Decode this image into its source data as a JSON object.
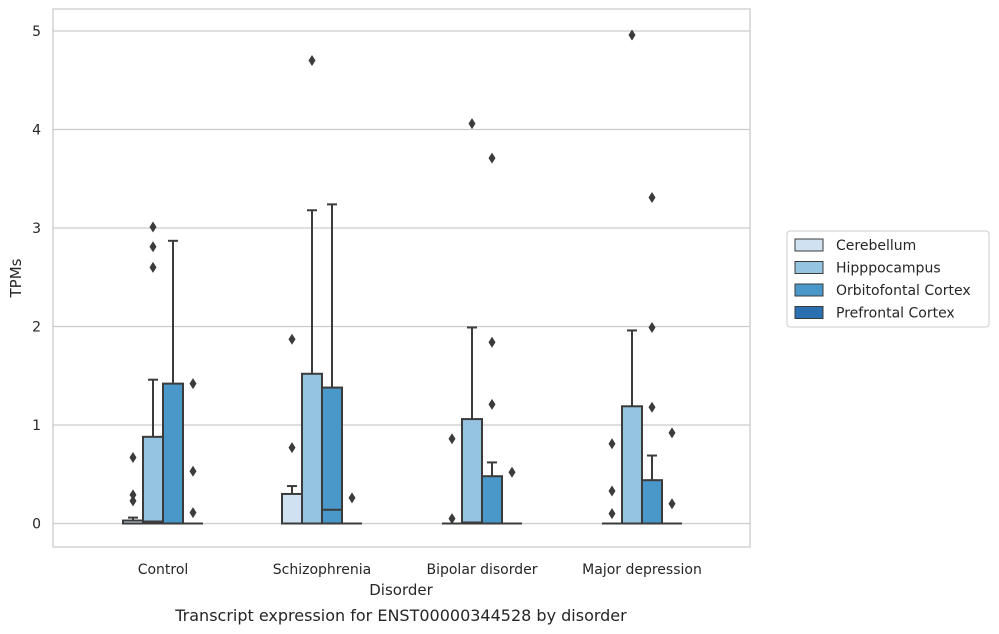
{
  "chart_data": {
    "type": "box",
    "xlabel": "Disorder",
    "ylabel": "TPMs",
    "caption": "Transcript expression for ENST00000344528 by disorder",
    "categories": [
      "Control",
      "Schizophrenia",
      "Bipolar disorder",
      "Major depression"
    ],
    "ylim": [
      -0.25,
      5.22
    ],
    "yticks": [
      0,
      1,
      2,
      3,
      4,
      5
    ],
    "grid": true,
    "legend_position": "right",
    "series": [
      {
        "name": "Cerebellum",
        "color": "#d0e1f2",
        "boxes": [
          {
            "q1": 0.0,
            "median": 0.0,
            "q3": 0.03,
            "whisker_low": 0.0,
            "whisker_high": 0.06,
            "outliers": [
              0.23,
              0.29,
              0.67
            ]
          },
          {
            "q1": 0.0,
            "median": 0.0,
            "q3": 0.3,
            "whisker_low": 0.0,
            "whisker_high": 0.38,
            "outliers": [
              0.77,
              1.87
            ]
          },
          {
            "q1": 0.0,
            "median": 0.0,
            "q3": 0.0,
            "whisker_low": 0.0,
            "whisker_high": 0.0,
            "outliers": [
              0.05,
              0.86
            ]
          },
          {
            "q1": 0.0,
            "median": 0.0,
            "q3": 0.0,
            "whisker_low": 0.0,
            "whisker_high": 0.0,
            "outliers": [
              0.1,
              0.33,
              0.81
            ]
          }
        ]
      },
      {
        "name": "Hipppocampus",
        "color": "#94c4df",
        "boxes": [
          {
            "q1": 0.0,
            "median": 0.02,
            "q3": 0.88,
            "whisker_low": 0.0,
            "whisker_high": 1.46,
            "outliers": [
              2.6,
              2.81,
              3.01
            ]
          },
          {
            "q1": 0.0,
            "median": 0.0,
            "q3": 1.52,
            "whisker_low": 0.0,
            "whisker_high": 3.18,
            "outliers": [
              4.7
            ]
          },
          {
            "q1": 0.0,
            "median": 0.01,
            "q3": 1.06,
            "whisker_low": 0.0,
            "whisker_high": 1.99,
            "outliers": [
              4.06
            ]
          },
          {
            "q1": 0.0,
            "median": 0.0,
            "q3": 1.19,
            "whisker_low": 0.0,
            "whisker_high": 1.96,
            "outliers": [
              4.96
            ]
          }
        ]
      },
      {
        "name": "Orbitofontal Cortex",
        "color": "#4a98c9",
        "boxes": [
          {
            "q1": 0.0,
            "median": 0.0,
            "q3": 1.42,
            "whisker_low": 0.0,
            "whisker_high": 2.87,
            "outliers": []
          },
          {
            "q1": 0.0,
            "median": 0.14,
            "q3": 1.38,
            "whisker_low": 0.0,
            "whisker_high": 3.24,
            "outliers": []
          },
          {
            "q1": 0.0,
            "median": 0.0,
            "q3": 0.48,
            "whisker_low": 0.0,
            "whisker_high": 0.62,
            "outliers": [
              1.21,
              1.84,
              3.71
            ]
          },
          {
            "q1": 0.0,
            "median": 0.0,
            "q3": 0.44,
            "whisker_low": 0.0,
            "whisker_high": 0.69,
            "outliers": [
              1.18,
              1.99,
              3.31
            ]
          }
        ]
      },
      {
        "name": "Prefrontal Cortex",
        "color": "#2a6fb0",
        "boxes": [
          {
            "q1": 0.0,
            "median": 0.0,
            "q3": 0.0,
            "whisker_low": 0.0,
            "whisker_high": 0.0,
            "outliers": [
              0.11,
              0.53,
              1.42
            ]
          },
          {
            "q1": 0.0,
            "median": 0.0,
            "q3": 0.0,
            "whisker_low": 0.0,
            "whisker_high": 0.0,
            "outliers": [
              0.26
            ]
          },
          {
            "q1": 0.0,
            "median": 0.0,
            "q3": 0.0,
            "whisker_low": 0.0,
            "whisker_high": 0.0,
            "outliers": [
              0.52
            ]
          },
          {
            "q1": 0.0,
            "median": 0.0,
            "q3": 0.0,
            "whisker_low": 0.0,
            "whisker_high": 0.0,
            "outliers": [
              0.2,
              0.92
            ]
          }
        ]
      }
    ]
  }
}
